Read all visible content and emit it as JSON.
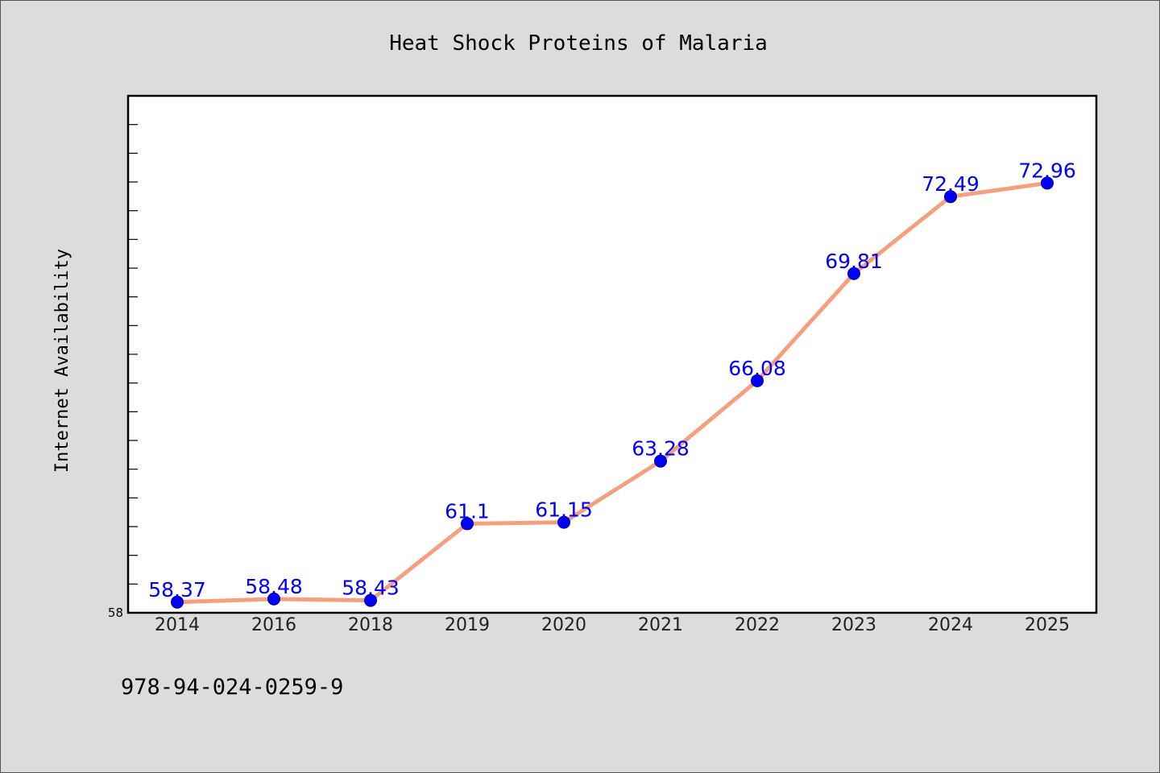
{
  "chart_data": {
    "type": "line",
    "title": "Heat Shock Proteins of Malaria",
    "xlabel": "",
    "ylabel": "Internet Availability",
    "categories": [
      "2014",
      "2016",
      "2018",
      "2019",
      "2020",
      "2021",
      "2022",
      "2023",
      "2024",
      "2025"
    ],
    "series": [
      {
        "values": [
          58.37,
          58.48,
          58.43,
          61.1,
          61.15,
          63.28,
          66.08,
          69.81,
          72.49,
          72.96
        ]
      }
    ],
    "data_labels": [
      "58.37",
      "58.48",
      "58.43",
      "61.1",
      "61.15",
      "63.28",
      "66.08",
      "69.81",
      "72.49",
      "72.96"
    ],
    "ylim": [
      58,
      76
    ],
    "y_tick_labels": [
      "58"
    ],
    "grid": false,
    "line_color": "#f4a07e",
    "marker_color": "#0000ff",
    "label_color": "#0000ff"
  },
  "footer": {
    "isbn": "978-94-024-0259-9"
  }
}
